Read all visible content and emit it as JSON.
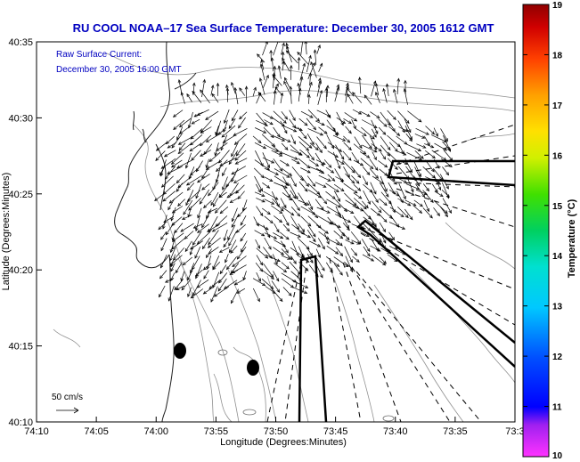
{
  "title": "RU COOL  NOAA–17  Sea Surface Temperature:  December 30, 2005 1612 GMT",
  "legend_line1": "Raw Surface Current:",
  "legend_line2": "December 30, 2005 16:00 GMT",
  "scale_label": "50 cm/s",
  "axes": {
    "xlabel": "Longitude (Degrees:Minutes)",
    "ylabel": "Latitude (Degrees:Minutes)",
    "x_ticks": [
      "74:10",
      "74:05",
      "74:00",
      "73:55",
      "73:50",
      "73:45",
      "73:40",
      "73:35",
      "73:3"
    ],
    "y_ticks": [
      "40:35",
      "40:30",
      "40:25",
      "40:20",
      "40:15",
      "40:10"
    ]
  },
  "colorbar": {
    "label": "Temperature (°C)",
    "ticks": [
      "19",
      "18",
      "17",
      "16",
      "15",
      "14",
      "13",
      "12",
      "11",
      "10"
    ],
    "colors": [
      "#ff33ff",
      "#6a00c8",
      "#0000ff",
      "#0060ff",
      "#00b4ff",
      "#00e0e0",
      "#00d060",
      "#40e000",
      "#c8f000",
      "#ffff00",
      "#ffc000",
      "#ff8000",
      "#ff3000",
      "#e00000",
      "#a00000"
    ]
  }
}
